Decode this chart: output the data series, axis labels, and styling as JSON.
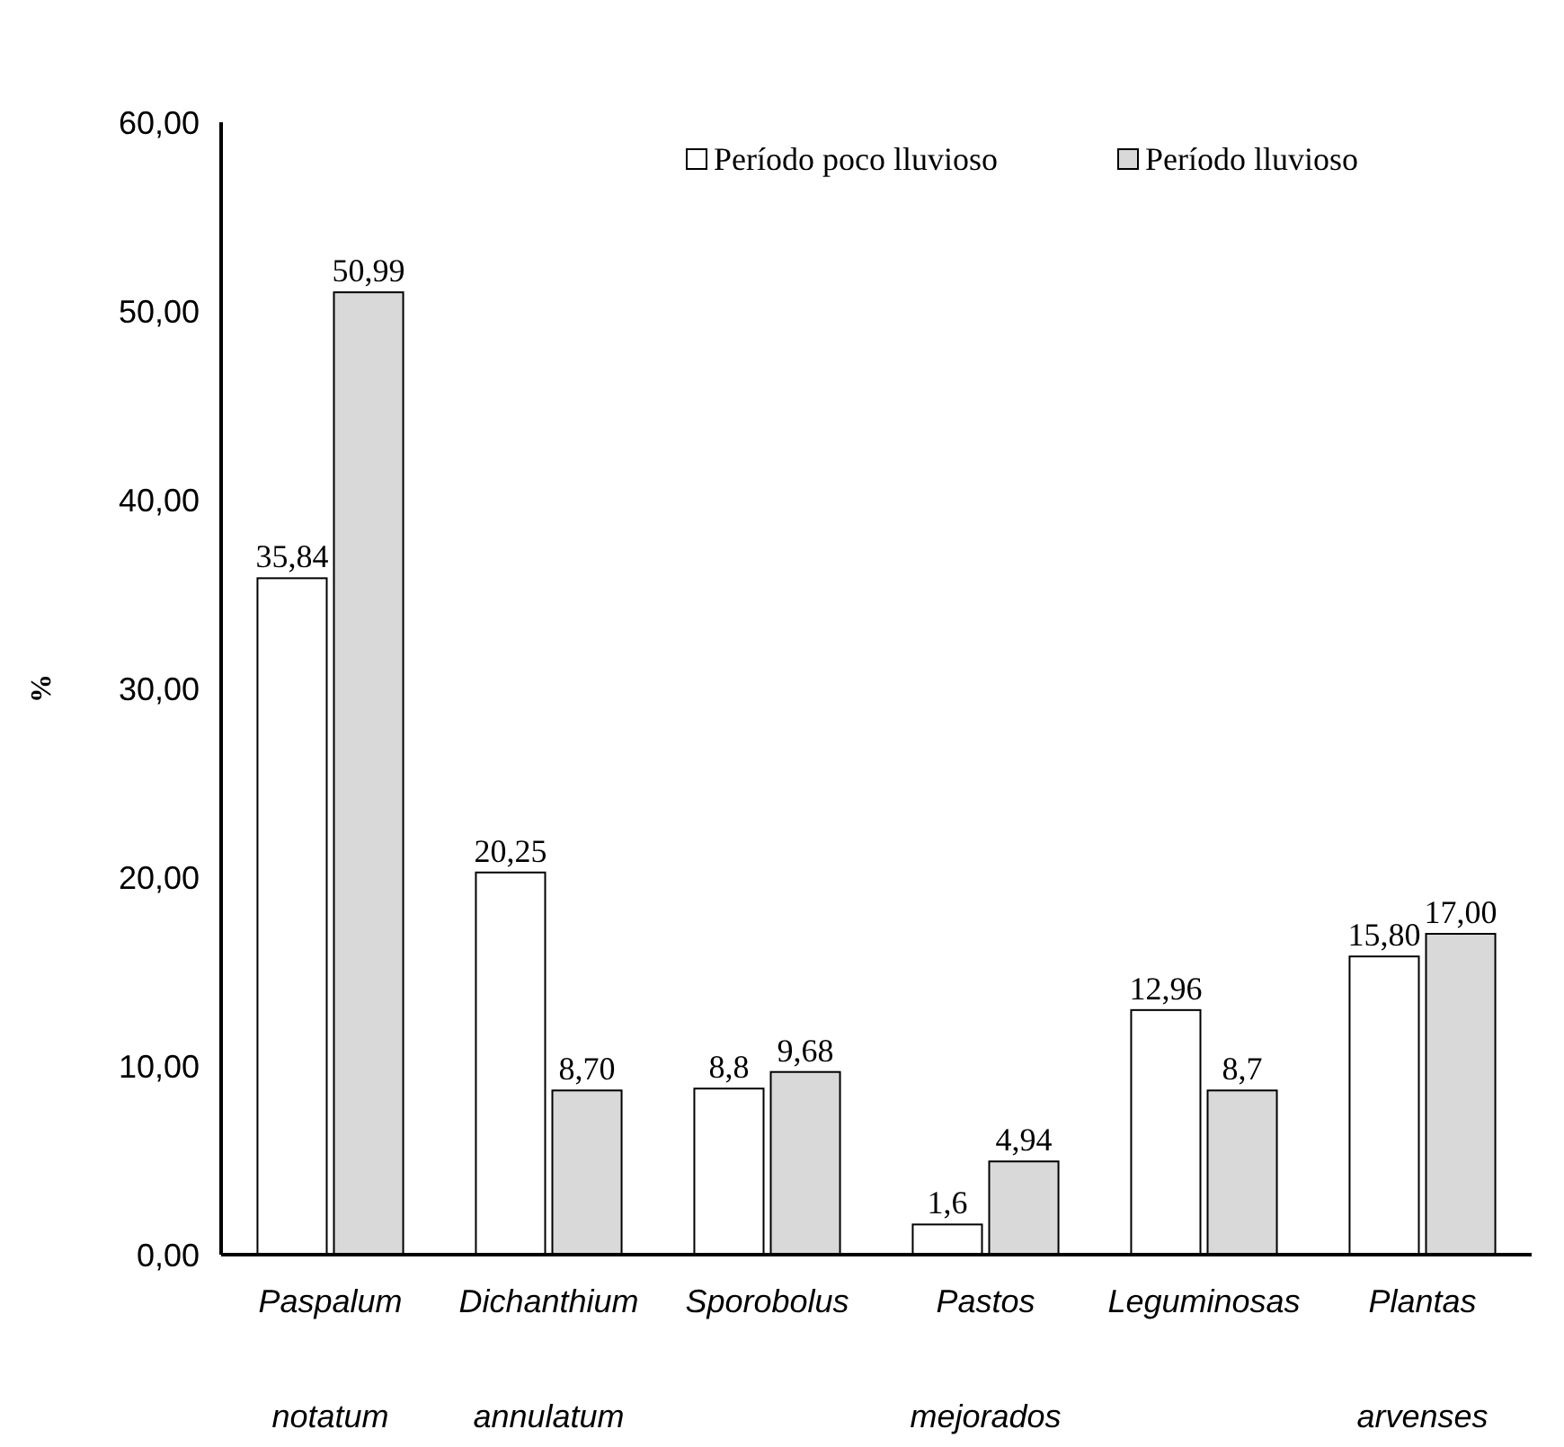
{
  "chart_data": {
    "type": "bar",
    "ylabel": "%",
    "categories": [
      "Paspalum notatum",
      "Dichanthium annulatum",
      "Sporobolus",
      "Pastos mejorados",
      "Leguminosas",
      "Plantas arvenses"
    ],
    "series": [
      {
        "name": "Período poco lluvioso",
        "color": "#ffffff",
        "values": [
          35.84,
          20.25,
          8.8,
          1.6,
          12.96,
          15.8
        ],
        "value_labels": [
          "35,84",
          "20,25",
          "8,8",
          "1,6",
          "12,96",
          "15,80"
        ]
      },
      {
        "name": "Período lluvioso",
        "color": "#d9d9d9",
        "values": [
          50.99,
          8.7,
          9.68,
          4.94,
          8.7,
          17.0
        ],
        "value_labels": [
          "50,99",
          "8,70",
          "9,68",
          "4,94",
          "8,7",
          "17,00"
        ]
      }
    ],
    "ylim": [
      0,
      60
    ],
    "yticks": [
      {
        "value": 0,
        "label": "0,00"
      },
      {
        "value": 10,
        "label": "10,00"
      },
      {
        "value": 20,
        "label": "20,00"
      },
      {
        "value": 30,
        "label": "30,00"
      },
      {
        "value": 40,
        "label": "40,00"
      },
      {
        "value": 50,
        "label": "50,00"
      },
      {
        "value": 60,
        "label": "60,00"
      }
    ],
    "grid": false,
    "legend": "top right"
  }
}
